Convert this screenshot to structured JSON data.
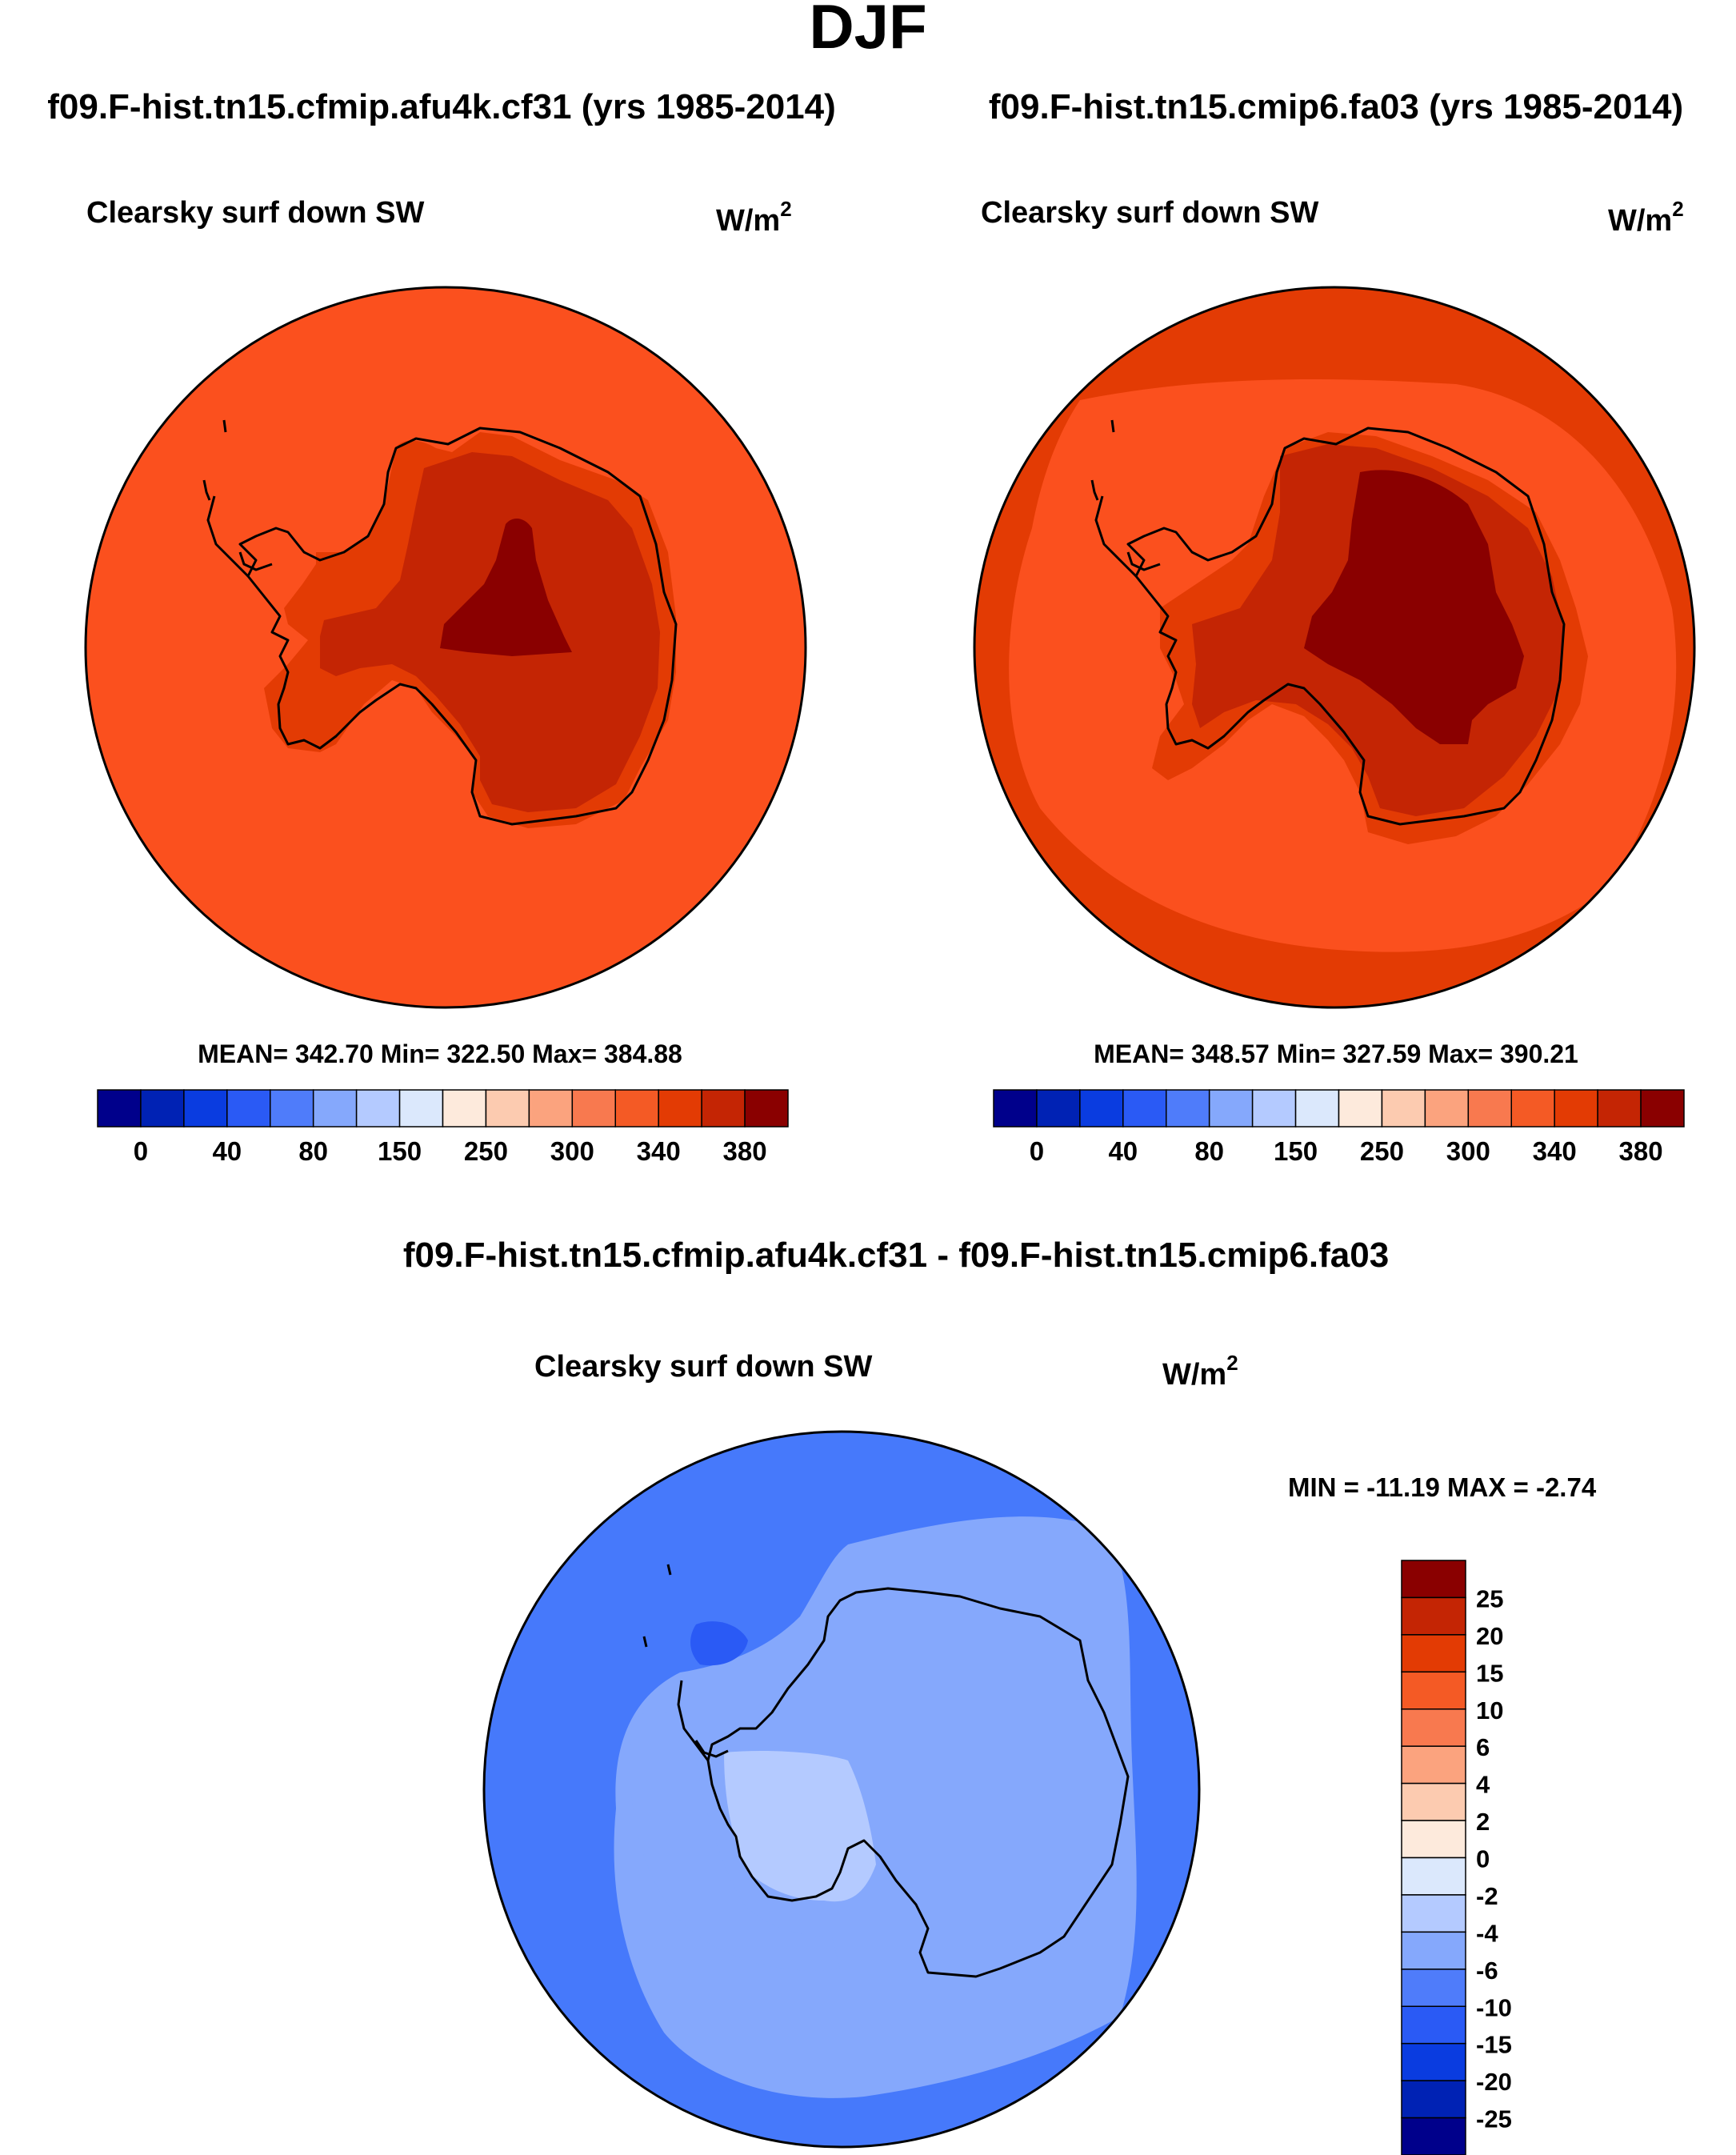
{
  "page_title": "DJF",
  "colors": {
    "outline": "#000000",
    "coast": "#000000",
    "background": "#ffffff"
  },
  "panels": [
    {
      "id": "panel-cf31",
      "case_title": "f09.F-hist.tn15.cfmip.afu4k.cf31 (yrs 1985-2014)",
      "variable": "Clearsky surf down SW",
      "units_base": "W/m",
      "units_exp": "2",
      "stats": "MEAN= 342.70  Min= 322.50  Max= 384.88",
      "mean": 342.7,
      "min": 322.5,
      "max": 384.88
    },
    {
      "id": "panel-fa03",
      "case_title": "f09.F-hist.tn15.cmip6.fa03 (yrs 1985-2014)",
      "variable": "Clearsky surf down SW",
      "units_base": "W/m",
      "units_exp": "2",
      "stats": "MEAN= 348.57  Min= 327.59  Max= 390.21",
      "mean": 348.57,
      "min": 327.59,
      "max": 390.21
    }
  ],
  "abs_colorbar": {
    "colors": [
      "#00008b",
      "#0022b4",
      "#0a3ce0",
      "#2a5af5",
      "#4f7cfa",
      "#85a8fc",
      "#b4caff",
      "#dbe8fc",
      "#fdeadc",
      "#fccbb0",
      "#fba37e",
      "#f8794f",
      "#f45a25",
      "#e33b04",
      "#c42504",
      "#8a0000"
    ],
    "labels": [
      "0",
      "40",
      "80",
      "150",
      "250",
      "300",
      "340",
      "380"
    ]
  },
  "diff_panel": {
    "title": "f09.F-hist.tn15.cfmip.afu4k.cf31 - f09.F-hist.tn15.cmip6.fa03",
    "variable": "Clearsky surf down SW",
    "units_base": "W/m",
    "units_exp": "2",
    "stats": "MIN = -11.19 MAX =  -2.74",
    "min": -11.19,
    "max": -2.74
  },
  "diff_colorbar": {
    "colors_top_to_bottom": [
      "#8a0000",
      "#c42504",
      "#e33b04",
      "#f45a25",
      "#f8794f",
      "#fba37e",
      "#fccbb0",
      "#fdeadc",
      "#dbe8fc",
      "#b4caff",
      "#85a8fc",
      "#4f7cfa",
      "#2a5af5",
      "#0a3ce0",
      "#0022b4",
      "#00008b"
    ],
    "labels_top_to_bottom": [
      "25",
      "20",
      "15",
      "10",
      "6",
      "4",
      "2",
      "0",
      "-2",
      "-4",
      "-6",
      "-10",
      "-15",
      "-20",
      "-25"
    ]
  },
  "fill_colors": {
    "c345": "#fb501e",
    "c365": "#e33b04",
    "c375": "#c42504",
    "c385": "#8a0000",
    "d_m10": "#4679fb",
    "d_m6": "#85a8fc",
    "d_m4": "#b4caff",
    "d_m15": "#2a5af5"
  }
}
